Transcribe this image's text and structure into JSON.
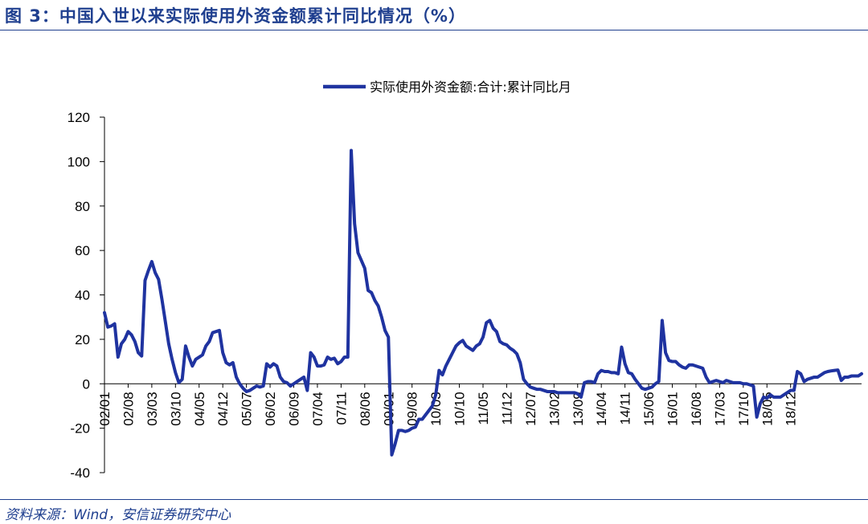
{
  "header": {
    "title": "图 3：中国入世以来实际使用外资金额累计同比情况（%）"
  },
  "footer": {
    "source": "资料来源：Wind，安信证券研究中心"
  },
  "colors": {
    "series": "#1f33a0",
    "text": "#1f3f8f"
  },
  "chart_data": {
    "type": "line",
    "title": "",
    "xlabel": "",
    "ylabel": "",
    "ylim": [
      -40,
      120
    ],
    "yticks": [
      -40,
      -20,
      0,
      20,
      40,
      60,
      80,
      100,
      120
    ],
    "xticks": [
      "02/01",
      "02/08",
      "03/03",
      "03/10",
      "04/05",
      "04/12",
      "05/07",
      "06/02",
      "06/09",
      "07/04",
      "07/11",
      "08/06",
      "09/01",
      "09/08",
      "10/03",
      "10/10",
      "11/05",
      "11/12",
      "12/07",
      "13/02",
      "13/09",
      "14/04",
      "14/11",
      "15/06",
      "16/01",
      "16/08",
      "17/03",
      "17/10",
      "18/05",
      "18/12"
    ],
    "legend_position": "top-center",
    "grid": false,
    "series": [
      {
        "name": "实际使用外资金额:合计:累计同比月",
        "start": "2002/01",
        "end": "2019/04",
        "values": [
          32,
          25.5,
          26,
          27,
          12,
          18,
          20,
          23.5,
          22,
          19,
          14,
          12.5,
          46.5,
          51,
          55,
          50,
          47,
          38,
          28,
          18,
          11,
          5,
          0.5,
          2,
          17,
          12,
          8,
          11,
          12,
          13,
          17,
          19,
          23,
          23.5,
          24,
          14,
          9.5,
          8.5,
          9.5,
          3,
          0,
          -2,
          -3.5,
          -3,
          -2,
          -1,
          -1.5,
          -1,
          9,
          7.5,
          9,
          8,
          3,
          1,
          0.5,
          -1,
          0,
          1,
          2,
          3,
          -3,
          14,
          12,
          8,
          8,
          8.5,
          12,
          11,
          11.5,
          9,
          10,
          12,
          12,
          105,
          72,
          59,
          55.5,
          52,
          42,
          41,
          37.5,
          35,
          30,
          24,
          21,
          -32,
          -27,
          -21,
          -21,
          -21.5,
          -21,
          -20,
          -19.5,
          -16,
          -16,
          -14,
          -12,
          -10,
          -5,
          6,
          4,
          8,
          11,
          14,
          17,
          18.5,
          19.5,
          17,
          16,
          15,
          17,
          18,
          21,
          27.5,
          28.5,
          25,
          23.5,
          19,
          18,
          17.5,
          16,
          15,
          13.5,
          9.5,
          2,
          0,
          -1.5,
          -2,
          -2.5,
          -2.5,
          -3,
          -3.5,
          -3.5,
          -3.5,
          -4,
          -4,
          -4,
          -4,
          -4,
          -4,
          -4.5,
          -6,
          0.5,
          1,
          1,
          0.5,
          4.5,
          6,
          5.5,
          5.5,
          5,
          5,
          4.5,
          16.5,
          9,
          5,
          4.5,
          2,
          0,
          -2,
          -2.5,
          -2,
          -1.5,
          0,
          1,
          28.5,
          14,
          10.5,
          10,
          10,
          8.5,
          7.5,
          7,
          8.5,
          8.5,
          8,
          7.5,
          7,
          3,
          0.5,
          1,
          1.5,
          1,
          0.5,
          1.5,
          1,
          0.5,
          0.5,
          0.5,
          0,
          0,
          -0.5,
          -1,
          -15,
          -9,
          -6,
          -6.5,
          -5,
          -6,
          -6,
          -6,
          -5,
          -4,
          -3,
          -3,
          5.5,
          4.5,
          1,
          2,
          2.5,
          3,
          3,
          4,
          5,
          5.5,
          5.8,
          6,
          6.2,
          1.5,
          3,
          3,
          3.5,
          3.5,
          3.5,
          4.5
        ]
      }
    ]
  }
}
